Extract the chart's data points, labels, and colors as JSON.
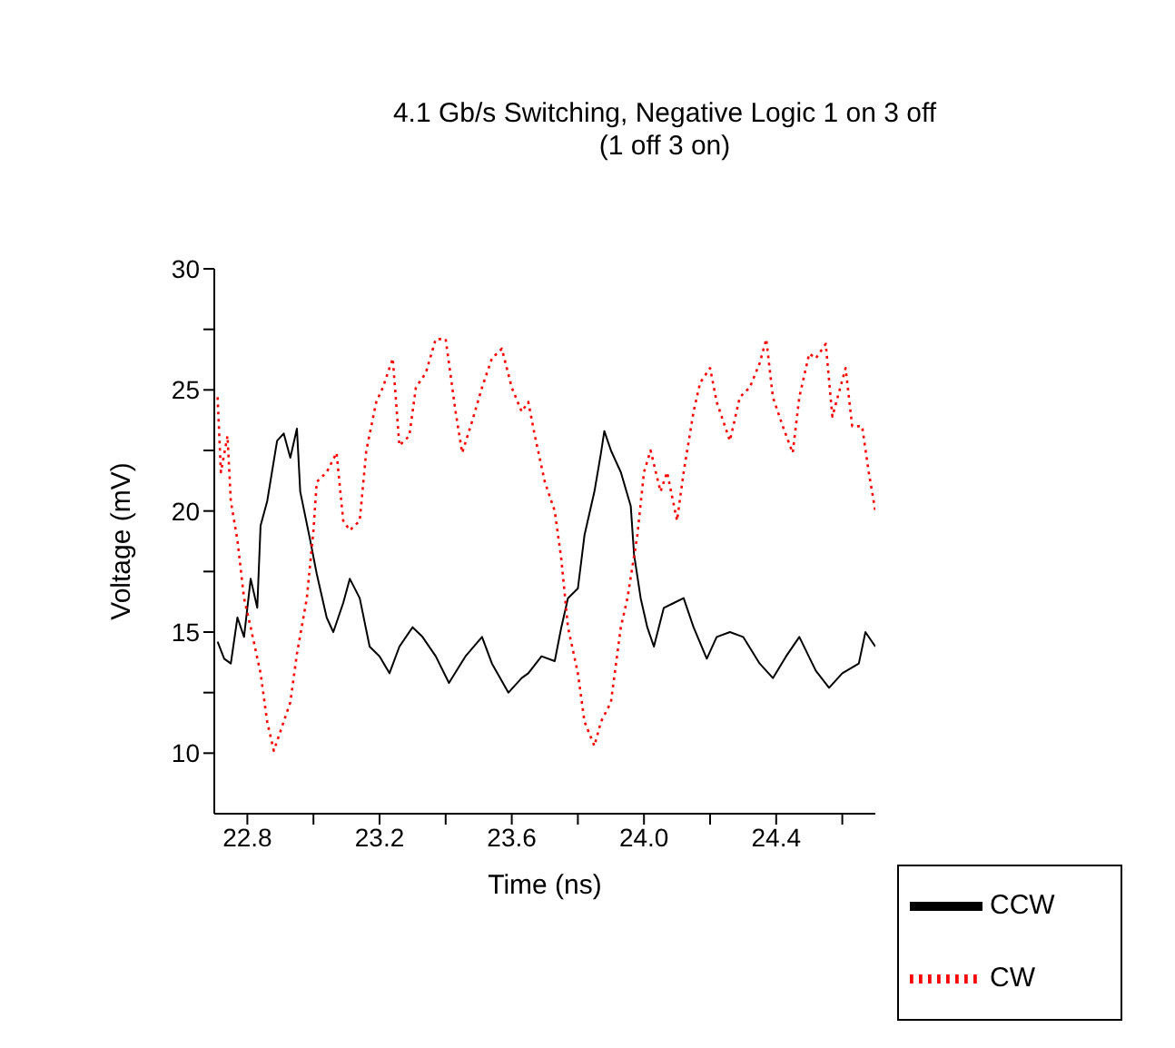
{
  "chart_data": {
    "type": "line",
    "title": "4.1 Gb/s Switching, Negative Logic 1 on 3 off",
    "subtitle": "(1 off 3 on)",
    "xlabel": "Time (ns)",
    "ylabel": "Voltage (mV)",
    "xlim": [
      22.7,
      24.7
    ],
    "xticks": [
      22.8,
      {
        "value": 23.0,
        "label": null
      },
      23.2,
      {
        "value": 23.4,
        "label": null
      },
      23.6,
      {
        "value": 23.8,
        "label": null
      },
      {
        "value": 24.0,
        "label": "24.0"
      },
      {
        "value": 24.2,
        "label": null
      },
      24.4,
      {
        "value": 24.6,
        "label": null
      }
    ],
    "ylim": [
      7.5,
      30
    ],
    "yticks": [
      10,
      {
        "value": 12.5,
        "label": null
      },
      15,
      {
        "value": 17.5,
        "label": null
      },
      20,
      {
        "value": 22.5,
        "label": null
      },
      25,
      {
        "value": 27.5,
        "label": null
      },
      30
    ],
    "grid": false,
    "legend": "bottom right",
    "marker": "none",
    "series": [
      {
        "name": "CCW",
        "color": "#000000",
        "line_style": "solid",
        "x": [
          22.71,
          22.73,
          22.75,
          22.77,
          22.79,
          22.81,
          22.83,
          22.84,
          22.86,
          22.89,
          22.91,
          22.93,
          22.95,
          22.96,
          22.99,
          23.01,
          23.04,
          23.06,
          23.09,
          23.11,
          23.14,
          23.17,
          23.2,
          23.23,
          23.26,
          23.3,
          23.33,
          23.37,
          23.41,
          23.46,
          23.51,
          23.54,
          23.59,
          23.63,
          23.65,
          23.69,
          23.73,
          23.75,
          23.77,
          23.8,
          23.82,
          23.85,
          23.87,
          23.88,
          23.9,
          23.93,
          23.96,
          23.97,
          23.99,
          24.01,
          24.03,
          24.06,
          24.09,
          24.12,
          24.15,
          24.19,
          24.22,
          24.26,
          24.3,
          24.35,
          24.39,
          24.43,
          24.47,
          24.52,
          24.56,
          24.6,
          24.65,
          24.67,
          24.7
        ],
        "values": [
          14.6,
          13.9,
          13.7,
          15.6,
          14.8,
          17.2,
          16.0,
          19.4,
          20.4,
          22.9,
          23.2,
          22.2,
          23.4,
          20.8,
          18.8,
          17.4,
          15.6,
          15.0,
          16.2,
          17.2,
          16.4,
          14.4,
          14.0,
          13.3,
          14.4,
          15.2,
          14.8,
          14.0,
          12.9,
          14.0,
          14.8,
          13.7,
          12.5,
          13.1,
          13.3,
          14.0,
          13.8,
          15.2,
          16.4,
          16.8,
          19.0,
          20.8,
          22.4,
          23.3,
          22.5,
          21.6,
          20.2,
          18.2,
          16.4,
          15.2,
          14.4,
          16.0,
          16.2,
          16.4,
          15.2,
          13.9,
          14.8,
          15.0,
          14.8,
          13.7,
          13.1,
          14.0,
          14.8,
          13.4,
          12.7,
          13.3,
          13.7,
          15.0,
          14.4
        ]
      },
      {
        "name": "CW",
        "color": "#ff0000",
        "line_style": "dotted",
        "x": [
          22.71,
          22.72,
          22.74,
          22.75,
          22.77,
          22.79,
          22.81,
          22.84,
          22.86,
          22.88,
          22.9,
          22.93,
          22.95,
          22.98,
          23.0,
          23.01,
          23.04,
          23.07,
          23.09,
          23.11,
          23.14,
          23.16,
          23.19,
          23.21,
          23.24,
          23.26,
          23.29,
          23.31,
          23.34,
          23.37,
          23.4,
          23.43,
          23.45,
          23.48,
          23.51,
          23.54,
          23.57,
          23.6,
          23.63,
          23.65,
          23.67,
          23.7,
          23.73,
          23.75,
          23.77,
          23.8,
          23.82,
          23.85,
          23.87,
          23.9,
          23.93,
          23.95,
          23.98,
          24.0,
          24.02,
          24.05,
          24.07,
          24.1,
          24.12,
          24.15,
          24.17,
          24.2,
          24.22,
          24.26,
          24.29,
          24.32,
          24.35,
          24.37,
          24.39,
          24.42,
          24.45,
          24.47,
          24.5,
          24.52,
          24.55,
          24.57,
          24.61,
          24.63,
          24.66,
          24.68,
          24.7
        ],
        "values": [
          24.7,
          21.6,
          23.1,
          20.4,
          18.8,
          16.4,
          15.2,
          13.3,
          11.3,
          10.1,
          10.9,
          12.1,
          14.1,
          16.4,
          19.2,
          21.2,
          21.6,
          22.4,
          19.6,
          19.2,
          19.6,
          22.5,
          24.5,
          25.1,
          26.3,
          22.7,
          23.1,
          25.1,
          25.7,
          27.1,
          27.1,
          24.1,
          22.4,
          23.7,
          25.1,
          26.3,
          26.7,
          25.1,
          24.1,
          24.5,
          23.1,
          21.2,
          20.0,
          18.0,
          15.2,
          13.3,
          11.3,
          10.3,
          11.3,
          12.1,
          15.2,
          16.4,
          19.0,
          21.6,
          22.5,
          20.8,
          21.6,
          19.6,
          21.6,
          24.1,
          25.3,
          25.9,
          24.5,
          22.9,
          24.7,
          25.1,
          26.1,
          27.1,
          24.7,
          23.5,
          22.4,
          24.7,
          26.5,
          26.3,
          26.9,
          23.9,
          25.9,
          23.5,
          23.5,
          21.6,
          20.0
        ]
      }
    ]
  }
}
